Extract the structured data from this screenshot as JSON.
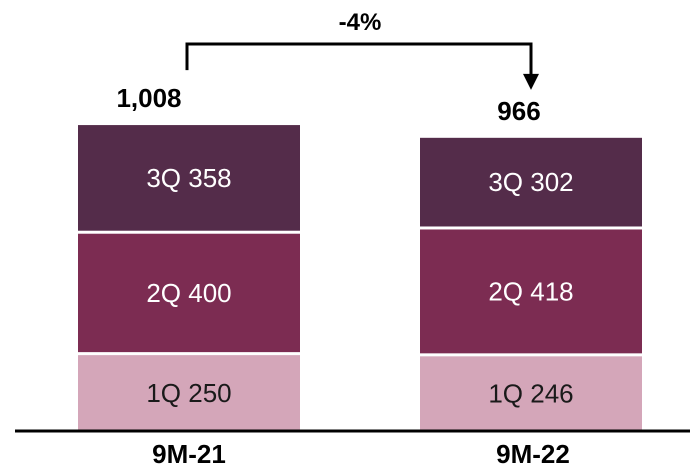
{
  "chart_data": {
    "type": "bar",
    "stacked": true,
    "categories": [
      "9M-21",
      "9M-22"
    ],
    "series": [
      {
        "quarter": "1Q",
        "values": [
          250,
          246
        ],
        "color": "#d4a6b9"
      },
      {
        "quarter": "2Q",
        "values": [
          400,
          418
        ],
        "color": "#7c2c52"
      },
      {
        "quarter": "3Q",
        "values": [
          358,
          302
        ],
        "color": "#542c4a"
      }
    ],
    "totals": [
      "1,008",
      "966"
    ],
    "segment_labels": [
      [
        "1Q 250",
        "1Q 246"
      ],
      [
        "2Q 400",
        "2Q 418"
      ],
      [
        "3Q 358",
        "3Q 302"
      ]
    ],
    "annotation": {
      "text": "-4%",
      "from": "9M-21",
      "to": "9M-22"
    },
    "title": "",
    "xlabel": "",
    "ylabel": "",
    "ylim": [
      0,
      1008
    ],
    "grid": false,
    "legend": "none"
  }
}
